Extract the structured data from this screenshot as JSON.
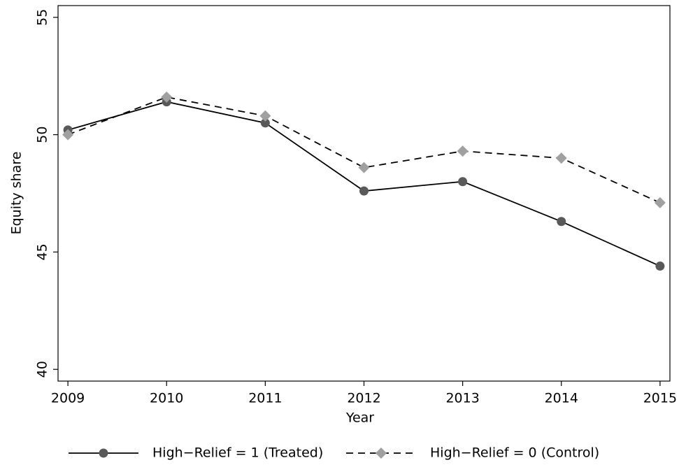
{
  "chart_data": {
    "type": "line",
    "x_label": "Year",
    "y_label": "Equity share",
    "x": [
      2009,
      2010,
      2011,
      2012,
      2013,
      2014,
      2015
    ],
    "xlim": [
      2008.9,
      2015.1
    ],
    "xticks": [
      2009,
      2010,
      2011,
      2012,
      2013,
      2014,
      2015
    ],
    "ylim": [
      39.5,
      55.5
    ],
    "yticks": [
      40,
      45,
      50,
      55
    ],
    "series": [
      {
        "name": "High−Relief = 1 (Treated)",
        "color": "#595959",
        "line_color": "#000000",
        "marker": "circle",
        "dashed": false,
        "values": [
          50.2,
          51.4,
          50.5,
          47.6,
          48.0,
          46.3,
          44.4
        ]
      },
      {
        "name": "High−Relief = 0 (Control)",
        "color": "#a0a0a0",
        "line_color": "#000000",
        "marker": "diamond",
        "dashed": true,
        "values": [
          50.0,
          51.6,
          50.8,
          48.6,
          49.3,
          49.0,
          47.1
        ]
      }
    ],
    "legend": "bottom"
  }
}
